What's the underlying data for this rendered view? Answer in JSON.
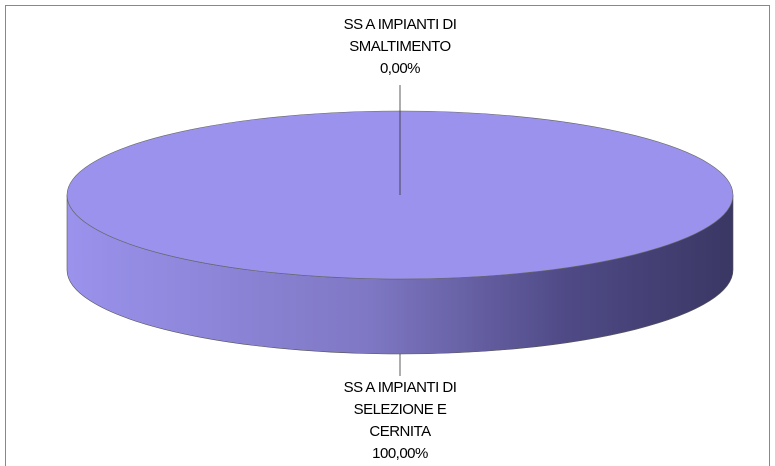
{
  "chart_data": {
    "type": "pie3d",
    "categories": [
      "SS A IMPIANTI DI SMALTIMENTO",
      "SS A IMPIANTI DI SELEZIONE E CERNITA"
    ],
    "values": [
      0,
      100
    ],
    "value_labels": [
      "0,00%",
      "100,00%"
    ],
    "colors": [
      "#9a92ec",
      "#9a92ec"
    ]
  }
}
